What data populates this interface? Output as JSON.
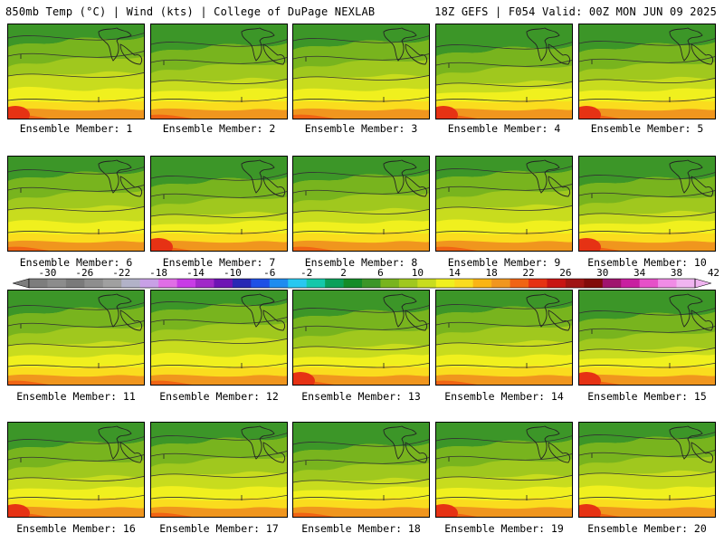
{
  "header": {
    "left": "850mb Temp (°C) | Wind (kts) | College of DuPage NEXLAB",
    "right": "18Z GEFS | F054 Valid: 00Z MON JUN 09 2025"
  },
  "members": [
    "Ensemble Member: 1",
    "Ensemble Member: 2",
    "Ensemble Member: 3",
    "Ensemble Member: 4",
    "Ensemble Member: 5",
    "Ensemble Member: 6",
    "Ensemble Member: 7",
    "Ensemble Member: 8",
    "Ensemble Member: 9",
    "Ensemble Member: 10",
    "Ensemble Member: 11",
    "Ensemble Member: 12",
    "Ensemble Member: 13",
    "Ensemble Member: 14",
    "Ensemble Member: 15",
    "Ensemble Member: 16",
    "Ensemble Member: 17",
    "Ensemble Member: 18",
    "Ensemble Member: 19",
    "Ensemble Member: 20"
  ],
  "colorbar": {
    "tick_labels": [
      "-30",
      "-26",
      "-22",
      "-18",
      "-14",
      "-10",
      "-6",
      "-2",
      "2",
      "6",
      "10",
      "14",
      "18",
      "22",
      "26",
      "30",
      "34",
      "38",
      "42"
    ],
    "colors": [
      "#7d7d7d",
      "#8c8c8c",
      "#7a7a7a",
      "#8e8e8e",
      "#a0a0a0",
      "#b2b2c8",
      "#c8a0e6",
      "#e06ee6",
      "#c83ce6",
      "#a028c8",
      "#6e14b4",
      "#2828b4",
      "#1e50e6",
      "#1e8cf0",
      "#28c8f0",
      "#14c8aa",
      "#0aa05a",
      "#148c28",
      "#3c9628",
      "#78b41e",
      "#a0c81e",
      "#c8dc1e",
      "#f0f01e",
      "#fadc1e",
      "#fab414",
      "#f0961e",
      "#f06414",
      "#e63214",
      "#c81414",
      "#a01414",
      "#820a0a",
      "#a0146e",
      "#c81ea0",
      "#e650c8",
      "#f08ce6",
      "#f0b4f0"
    ],
    "colors_note": "36 bins from -32 to 42"
  },
  "maps": {
    "colors": {
      "deep_green": "#3c9628",
      "green": "#78b41e",
      "lime": "#a0c81e",
      "yellow_green": "#c8dc1e",
      "yellow": "#f0f01e",
      "light_orange": "#fadc1e",
      "orange": "#f0961e",
      "dark_orange": "#f06414",
      "red": "#e63214"
    }
  }
}
